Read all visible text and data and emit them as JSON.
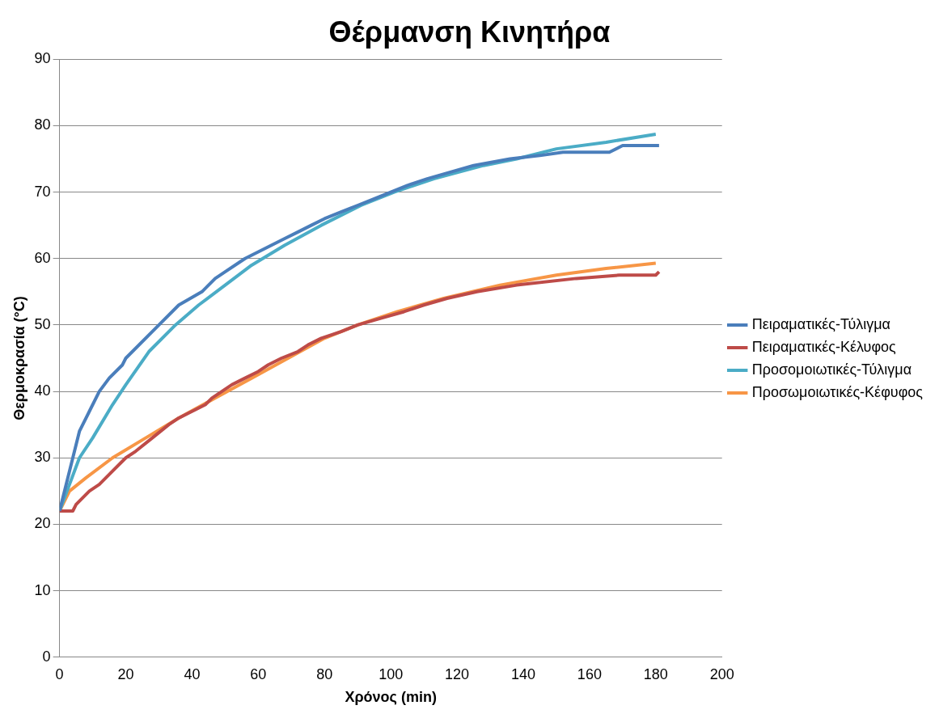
{
  "chart_data": {
    "type": "line",
    "title": "Θέρμανση Κινητήρα",
    "xlabel": "Χρόνος (min)",
    "ylabel": "Θερμοκρασία (°C)",
    "xlim": [
      0,
      200
    ],
    "xticks": [
      0,
      20,
      40,
      60,
      80,
      100,
      120,
      140,
      160,
      180,
      200
    ],
    "ylim": [
      0,
      90
    ],
    "yticks": [
      0,
      10,
      20,
      30,
      40,
      50,
      60,
      70,
      80,
      90
    ],
    "grid": "y",
    "legend": "right",
    "marker": "none",
    "line_style": "solid",
    "series": [
      {
        "name": "Πειραματικές-Τύλιγμα",
        "color": "#4a7ebb",
        "x": [
          0,
          6,
          9,
          12,
          15,
          19,
          20,
          30,
          36,
          43,
          47,
          50,
          56,
          60,
          64,
          68,
          72,
          76,
          80,
          85,
          90,
          95,
          100,
          105,
          111,
          118,
          125,
          136,
          145,
          152,
          166,
          170,
          181
        ],
        "values": [
          22,
          34,
          37,
          40,
          42,
          44,
          45,
          50,
          53,
          55,
          57,
          58,
          60,
          61,
          62,
          63,
          64,
          65,
          66,
          67,
          68,
          69,
          70,
          71,
          72,
          73,
          74,
          75,
          75.5,
          76,
          76,
          77,
          77
        ]
      },
      {
        "name": "Πειραματικές-Κέλυφος",
        "color": "#be4b48",
        "x": [
          0,
          4,
          5,
          7,
          9,
          12,
          14,
          16,
          20,
          23,
          28,
          33,
          36,
          40,
          44,
          46,
          49,
          52,
          56,
          60,
          63,
          67,
          72,
          75,
          79,
          85,
          90,
          97,
          104,
          110,
          117,
          126,
          138,
          156,
          169,
          180,
          181
        ],
        "values": [
          22,
          22,
          23,
          24,
          25,
          26,
          27,
          28,
          30,
          31,
          33,
          35,
          36,
          37,
          38,
          39,
          40,
          41,
          42,
          43,
          44,
          45,
          46,
          47,
          48,
          49,
          50,
          51,
          52,
          53,
          54,
          55,
          56,
          57,
          57.5,
          57.5,
          58
        ]
      },
      {
        "name": "Προσομοιωτικές-Τύλιγμα",
        "color": "#4bacc6",
        "x": [
          0,
          6,
          10,
          16,
          20,
          27,
          35,
          42,
          50,
          58,
          68,
          79,
          91,
          101,
          113,
          128,
          138,
          150,
          165,
          180
        ],
        "values": [
          22,
          30,
          33,
          38,
          41,
          46,
          50,
          53,
          56,
          59,
          62,
          65,
          68,
          70,
          72,
          74,
          75,
          76.5,
          77.5,
          78.7
        ]
      },
      {
        "name": "Προσωμοιωτικές-Κέφυφος",
        "color": "#f79646",
        "x": [
          0,
          3,
          8,
          16,
          26,
          36,
          47,
          58,
          69,
          80,
          90,
          102,
          116,
          133,
          150,
          165,
          180
        ],
        "values": [
          22,
          25,
          27,
          30,
          33,
          36,
          39,
          42,
          45,
          48,
          50,
          52,
          54,
          56,
          57.5,
          58.5,
          59.3
        ]
      }
    ]
  }
}
